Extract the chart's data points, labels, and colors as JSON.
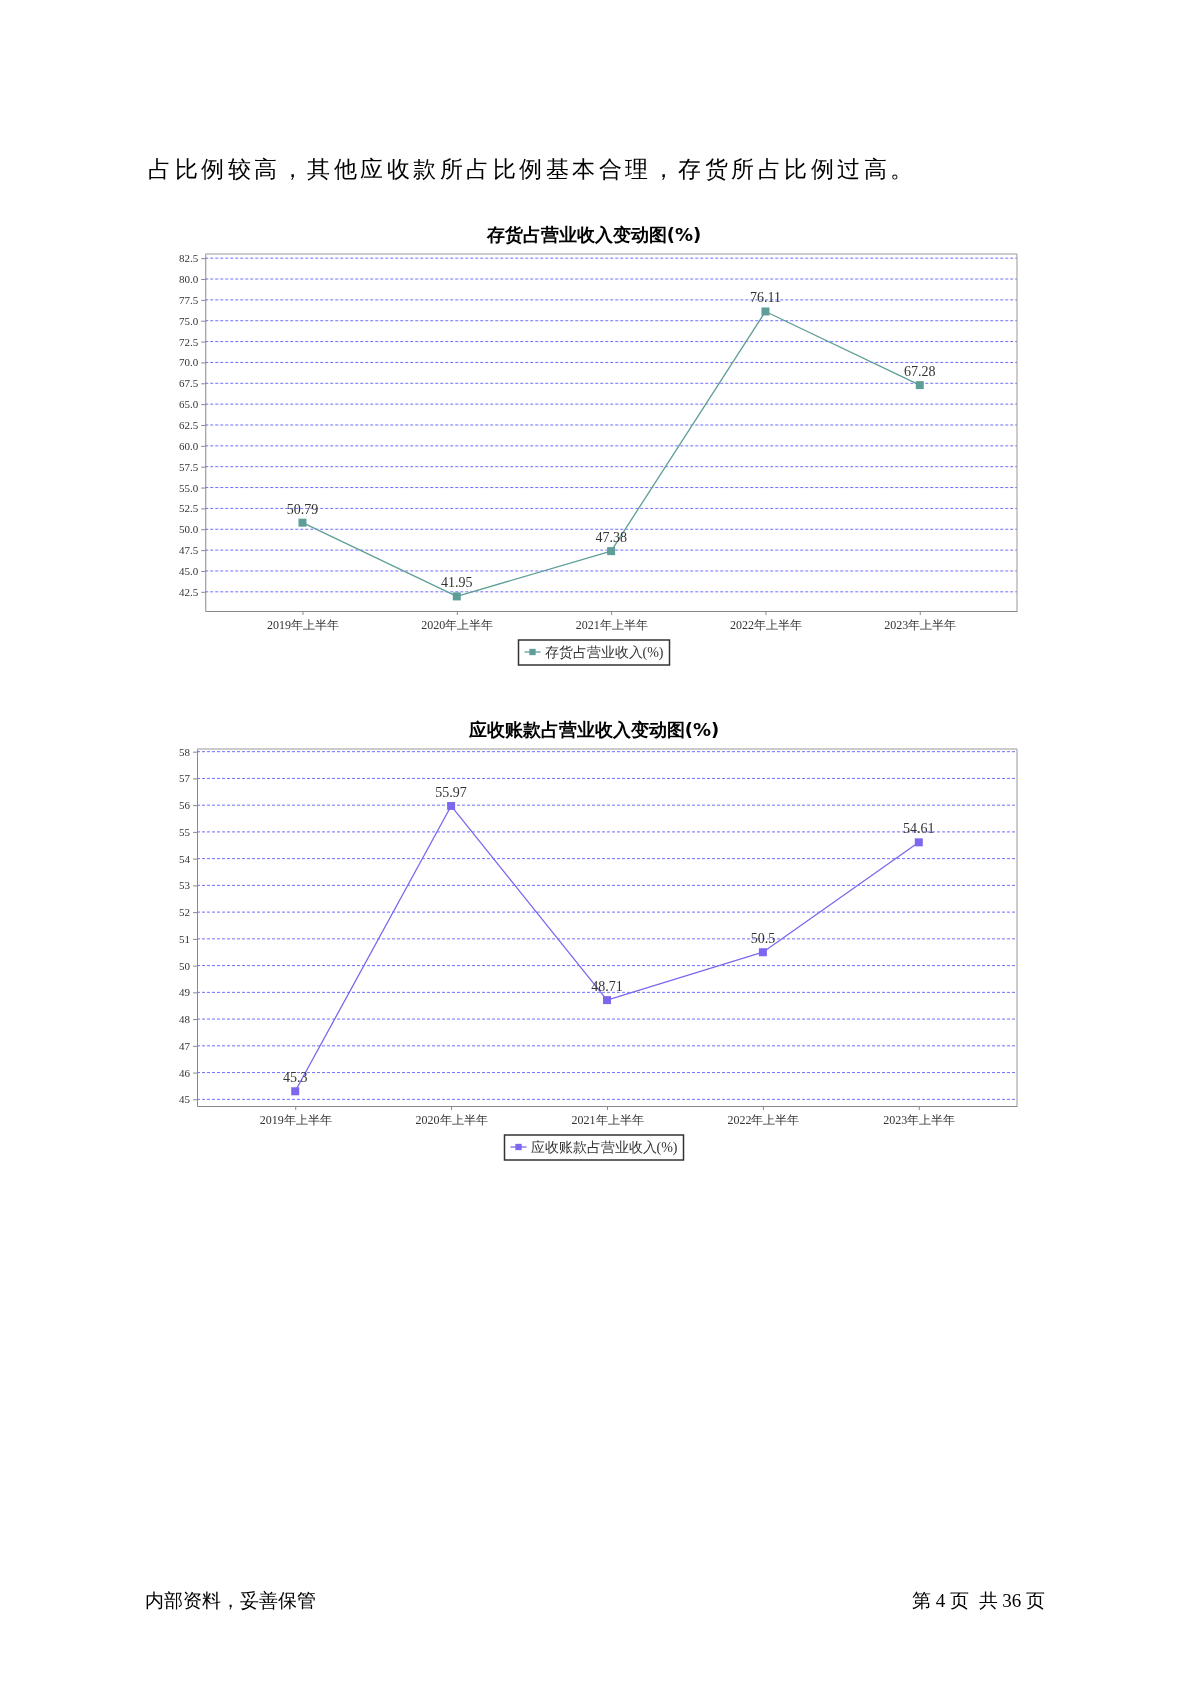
{
  "chart_data": [
    {
      "type": "line",
      "title": "存货占营业收入变动图(%)",
      "categories": [
        "2019年上半年",
        "2020年上半年",
        "2021年上半年",
        "2022年上半年",
        "2023年上半年"
      ],
      "series": [
        {
          "name": "存货占营业收入(%)",
          "color": "#5f9e98",
          "values": [
            50.79,
            41.95,
            47.38,
            76.11,
            67.28
          ]
        }
      ],
      "ylim": [
        40.2,
        83.0
      ],
      "yticks": [
        42.5,
        {
          "value": 45,
          "label": "45.0"
        },
        47.5,
        {
          "value": 50,
          "label": "50.0"
        },
        52.5,
        {
          "value": 55,
          "label": "55.0"
        },
        57.5,
        {
          "value": 60,
          "label": "60.0"
        },
        62.5,
        {
          "value": 65,
          "label": "65.0"
        },
        67.5,
        {
          "value": 70,
          "label": "70.0"
        },
        72.5,
        {
          "value": 75,
          "label": "75.0"
        },
        77.5,
        {
          "value": 80,
          "label": "80.0"
        },
        82.5
      ],
      "grid": "y",
      "legend": "bottom",
      "marker": "square",
      "line_style": "solid",
      "data_labels": true,
      "annotations": [
        "占比例较高，其他应收款所占比例基本合理，存货所占比例过高。"
      ]
    },
    {
      "type": "line",
      "title": "应收账款占营业收入变动图(%)",
      "categories": [
        "2019年上半年",
        "2020年上半年",
        "2021年上半年",
        "2022年上半年",
        "2023年上半年"
      ],
      "series": [
        {
          "name": "应收账款占营业收入(%)",
          "color": "#7b68ee",
          "values": [
            45.3,
            55.97,
            48.71,
            50.5,
            54.61
          ]
        }
      ],
      "ylim": [
        44.75,
        58.1
      ],
      "yticks": [
        45,
        46,
        47,
        48,
        49,
        50,
        51,
        52,
        53,
        54,
        55,
        56,
        57,
        58
      ],
      "grid": "y",
      "legend": "bottom",
      "marker": "square",
      "line_style": "solid",
      "data_labels": true,
      "annotations": [
        "内部资料，妥善保管",
        "第 4 页  共 36 页"
      ]
    }
  ]
}
